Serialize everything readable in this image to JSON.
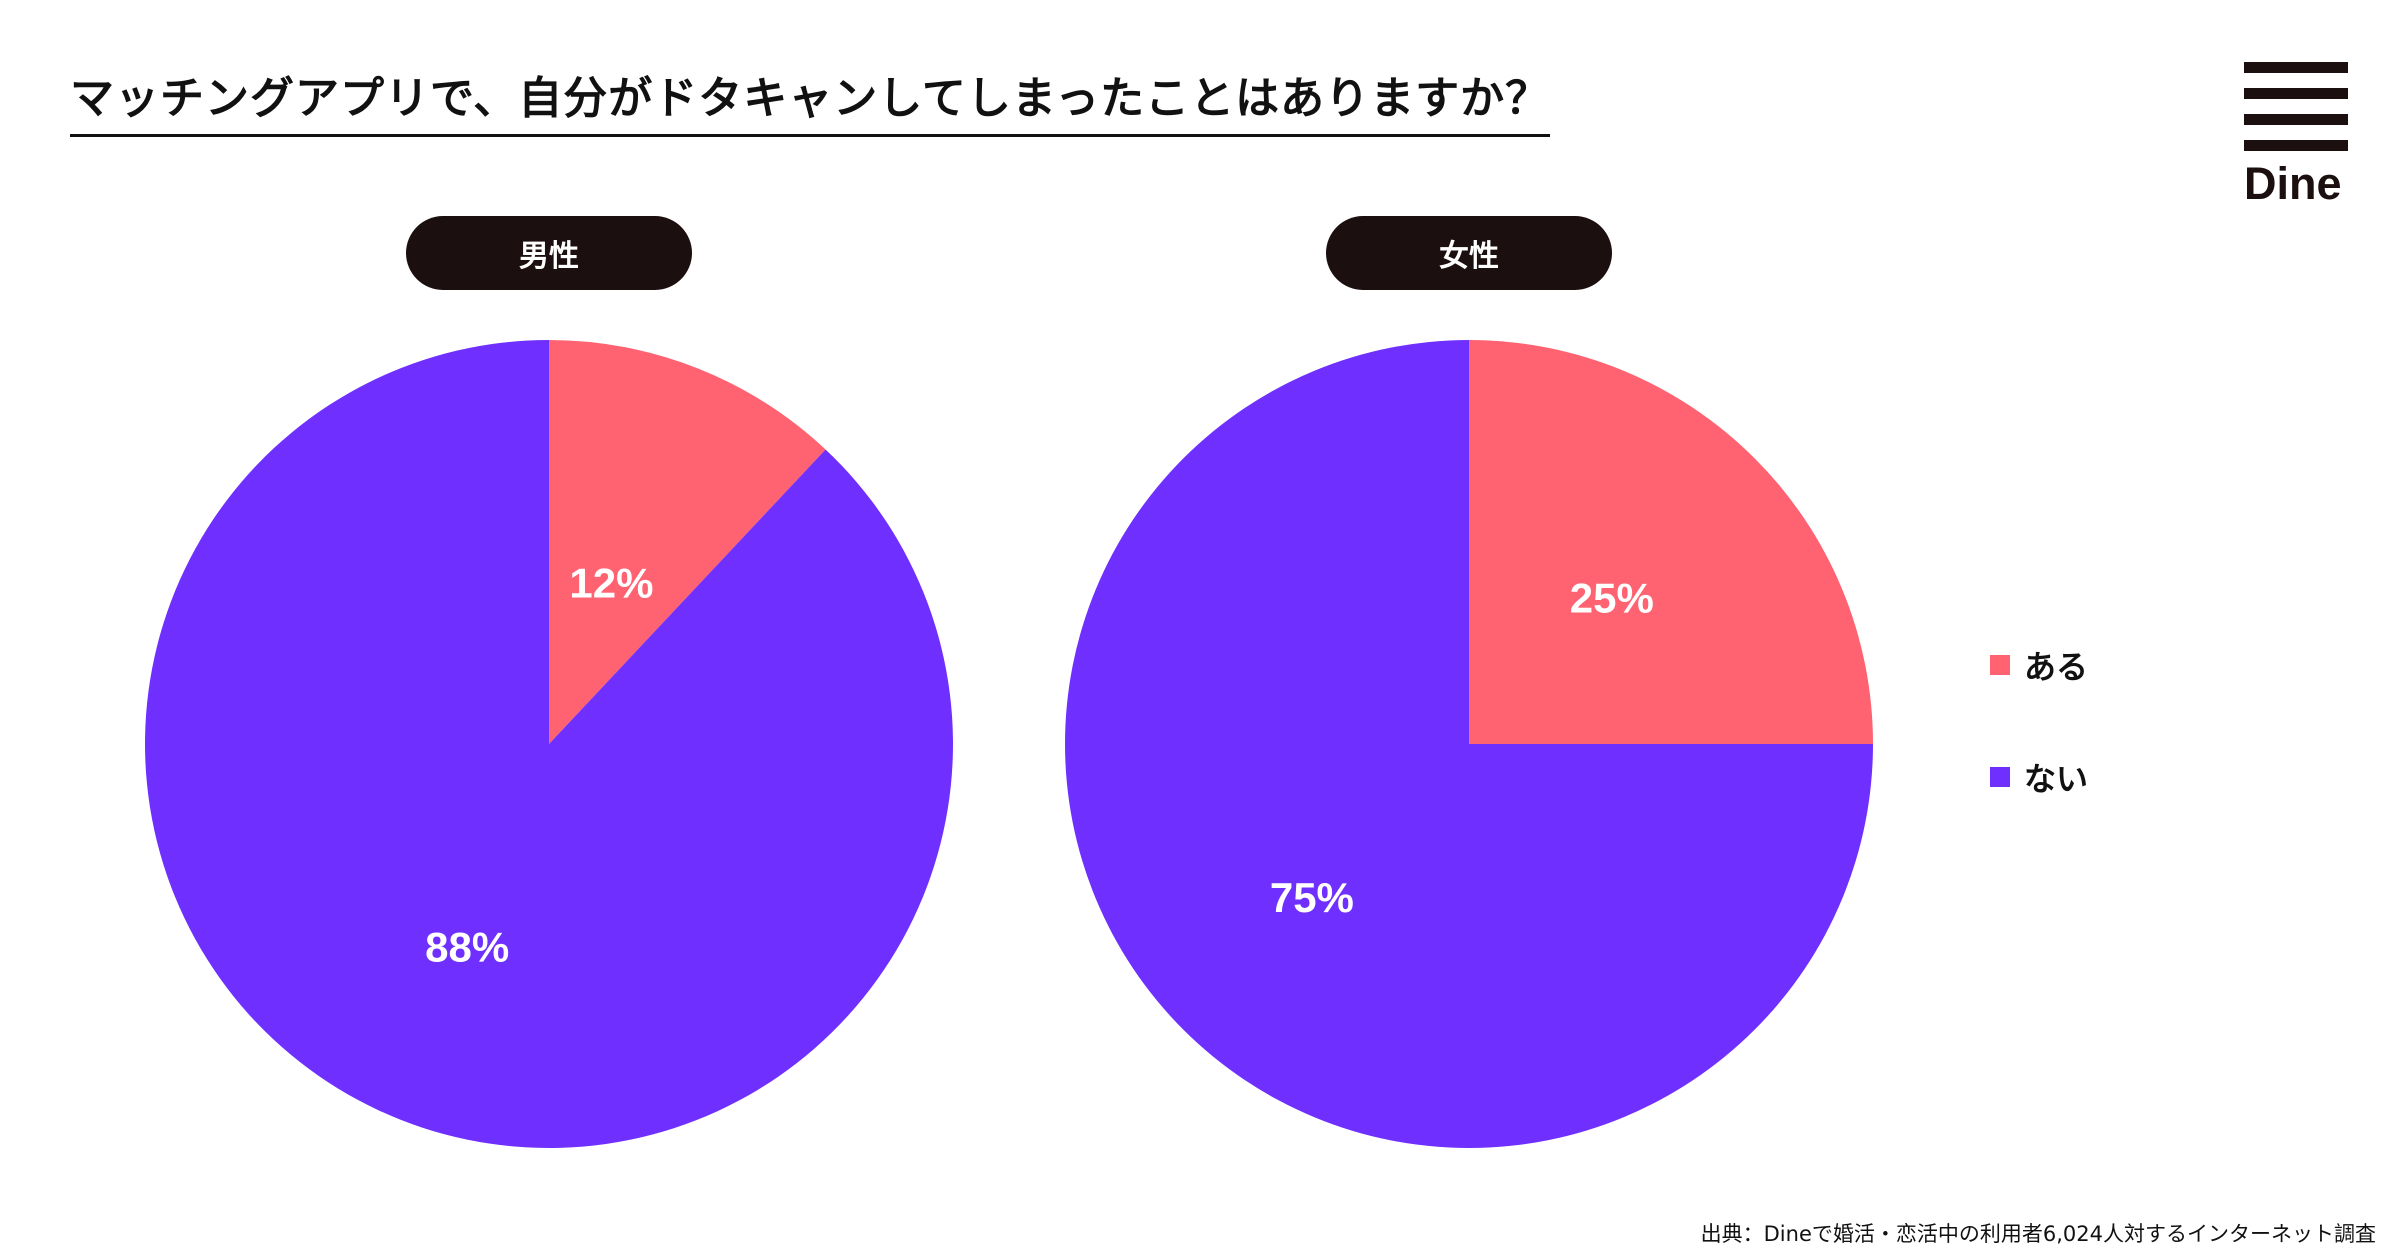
{
  "title": "マッチングアプリで、自分がドタキャンしてしまったことはありますか？",
  "brand": "Dine",
  "source": "出典：Dineで婚活・恋活中の利用者6,024人対するインターネット調査",
  "colors": {
    "yes": "#ff6271",
    "no": "#6f30ff",
    "dark": "#1c0f0f"
  },
  "legend": [
    {
      "label": "ある",
      "color": "#ff6271"
    },
    {
      "label": "ない",
      "color": "#6f30ff"
    }
  ],
  "chart_data": [
    {
      "type": "pie",
      "title": "男性",
      "categories": [
        "ある",
        "ない"
      ],
      "values": [
        12,
        88
      ],
      "labels": [
        "12%",
        "88%"
      ],
      "colors": [
        "#ff6271",
        "#6f30ff"
      ]
    },
    {
      "type": "pie",
      "title": "女性",
      "categories": [
        "ある",
        "ない"
      ],
      "values": [
        25,
        75
      ],
      "labels": [
        "25%",
        "75%"
      ],
      "colors": [
        "#ff6271",
        "#6f30ff"
      ]
    }
  ]
}
